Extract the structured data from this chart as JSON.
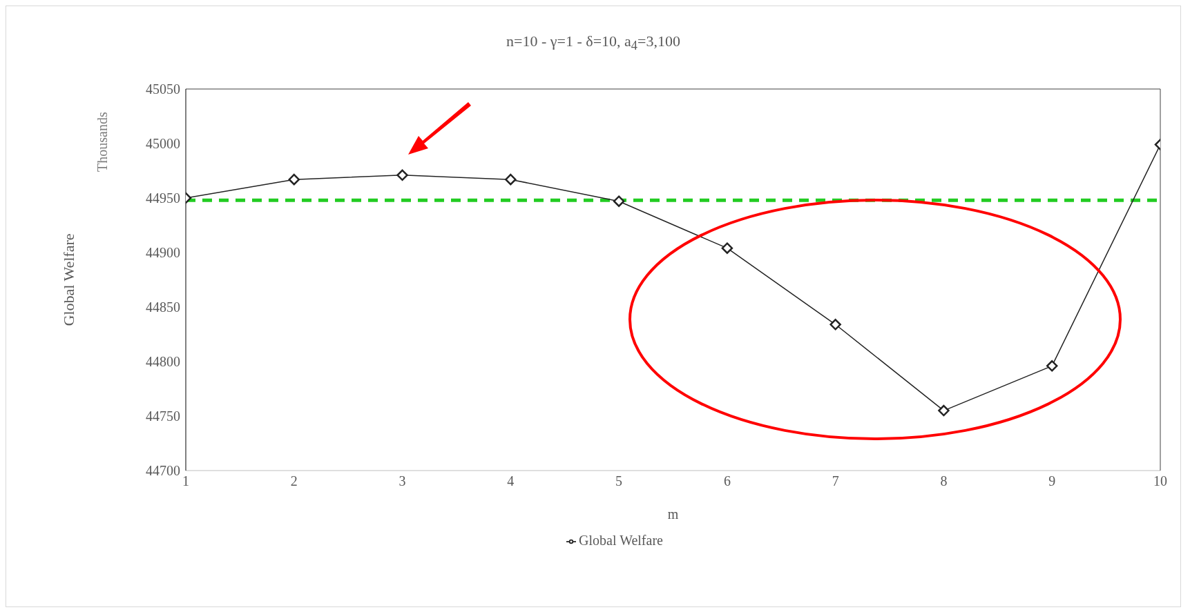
{
  "chart_data": {
    "type": "line",
    "title": "n=10 - γ=1 - δ=10, a$_{4}$=3,100",
    "xlabel": "m",
    "ylabel": "Global Welfare",
    "annotations": [
      "Thousands"
    ],
    "x": [
      1,
      2,
      3,
      4,
      5,
      6,
      7,
      8,
      9,
      10
    ],
    "series": [
      {
        "name": "Global Welfare",
        "color": "#222222",
        "values": [
          44950,
          44967,
          44971,
          44967,
          44947,
          44904,
          44834,
          44755,
          44796,
          44999
        ]
      }
    ],
    "xlim": [
      1,
      10
    ],
    "xticks": [
      1,
      2,
      3,
      4,
      5,
      6,
      7,
      8,
      9,
      10
    ],
    "ylim": [
      44700,
      45050
    ],
    "yticks": [
      44700,
      44750,
      44800,
      44850,
      44900,
      44950,
      45000,
      45050
    ],
    "ref_lines": [
      {
        "axis": "y",
        "value": 44948,
        "color": "#22cc22",
        "line_style": "dashed"
      }
    ],
    "grid": false,
    "legend": "bottom",
    "marker": "diamond",
    "line_style": "solid"
  }
}
